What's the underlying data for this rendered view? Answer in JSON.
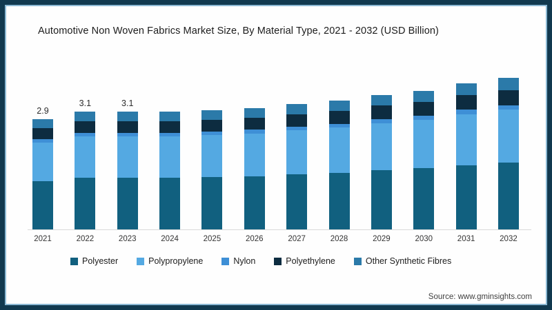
{
  "title": "Automotive Non Woven Fabrics Market Size, By Material Type, 2021 - 2032 (USD Billion)",
  "source": "Source: www.gminsights.com",
  "frame": {
    "border_color": "#11394F",
    "inner_line_color": "#2E7FB0",
    "background": "#FEFEFE",
    "axis_line_color": "#D9D9D9"
  },
  "chart_data": {
    "type": "bar",
    "stacked": true,
    "title": "Automotive Non Woven Fabrics Market Size, By Material Type, 2021 - 2032 (USD Billion)",
    "xlabel": "",
    "ylabel": "USD Billion",
    "grid": false,
    "legend_position": "bottom",
    "categories": [
      "2021",
      "2022",
      "2023",
      "2024",
      "2025",
      "2026",
      "2027",
      "2028",
      "2029",
      "2030",
      "2031",
      "2032"
    ],
    "data_labels": [
      "2.9",
      "3.1",
      "3.1",
      "",
      "",
      "",
      "",
      "",
      "",
      "",
      "",
      ""
    ],
    "totals": [
      2.9,
      3.1,
      3.1,
      3.1,
      3.15,
      3.2,
      3.3,
      3.4,
      3.55,
      3.65,
      3.85,
      4.0
    ],
    "series": [
      {
        "name": "Polyester",
        "color": "#11607F",
        "values": [
          1.28,
          1.36,
          1.36,
          1.36,
          1.39,
          1.41,
          1.45,
          1.5,
          1.56,
          1.61,
          1.69,
          1.76
        ]
      },
      {
        "name": "Polypropylene",
        "color": "#54A9E2",
        "values": [
          1.02,
          1.09,
          1.09,
          1.09,
          1.1,
          1.12,
          1.16,
          1.19,
          1.24,
          1.28,
          1.35,
          1.4
        ]
      },
      {
        "name": "Nylon",
        "color": "#3E8FD6",
        "values": [
          0.09,
          0.09,
          0.09,
          0.09,
          0.09,
          0.1,
          0.1,
          0.1,
          0.11,
          0.11,
          0.12,
          0.12
        ]
      },
      {
        "name": "Polyethylene",
        "color": "#0D2C40",
        "values": [
          0.29,
          0.31,
          0.31,
          0.31,
          0.32,
          0.32,
          0.33,
          0.34,
          0.36,
          0.37,
          0.39,
          0.4
        ]
      },
      {
        "name": "Other Synthetic Fibres",
        "color": "#2B7AA9",
        "values": [
          0.23,
          0.25,
          0.25,
          0.25,
          0.25,
          0.26,
          0.26,
          0.27,
          0.28,
          0.29,
          0.31,
          0.32
        ]
      }
    ]
  }
}
